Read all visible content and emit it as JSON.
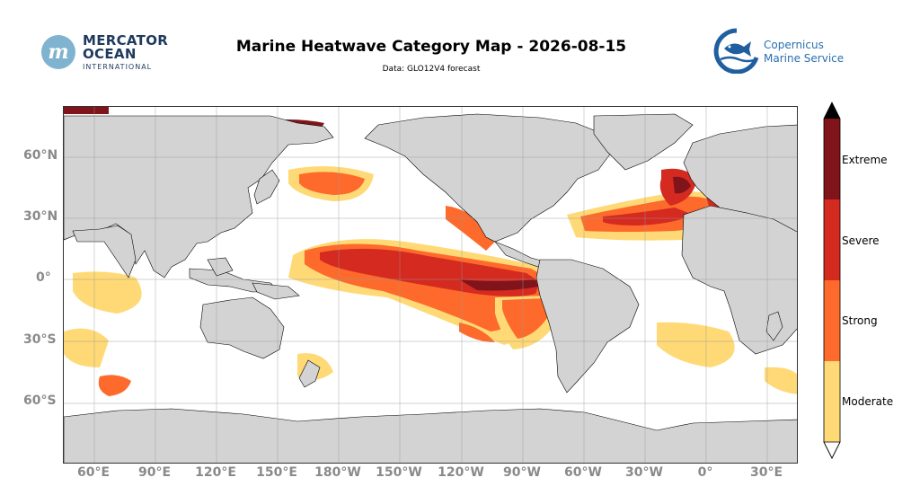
{
  "header": {
    "title": "Marine Heatwave Category Map - 2026-08-15",
    "subtitle": "Data: GLO12V4 forecast"
  },
  "logos": {
    "mercator": {
      "line1": "MERCATOR",
      "line2": "OCEAN",
      "line3": "INTERNATIONAL"
    },
    "copernicus": {
      "line1": "Copernicus",
      "line2": "Marine Service"
    }
  },
  "map": {
    "projection": "PlateCarree",
    "central_longitude": -150,
    "lat_ticks": [
      "60°N",
      "30°N",
      "0°",
      "30°S",
      "60°S"
    ],
    "lon_ticks": [
      "60°E",
      "90°E",
      "120°E",
      "150°E",
      "180°W",
      "150°W",
      "120°W",
      "90°W",
      "60°W",
      "30°W",
      "0°",
      "30°E"
    ],
    "land_color": "#d3d3d3",
    "gridlines": true
  },
  "colorbar": {
    "categories": [
      "Moderate",
      "Strong",
      "Severe",
      "Extreme"
    ],
    "colors": [
      "#fed976",
      "#fd6a2b",
      "#d42a20",
      "#80141a"
    ],
    "extend": "both",
    "over_color": "#000000",
    "under_color": "#ffffff"
  }
}
